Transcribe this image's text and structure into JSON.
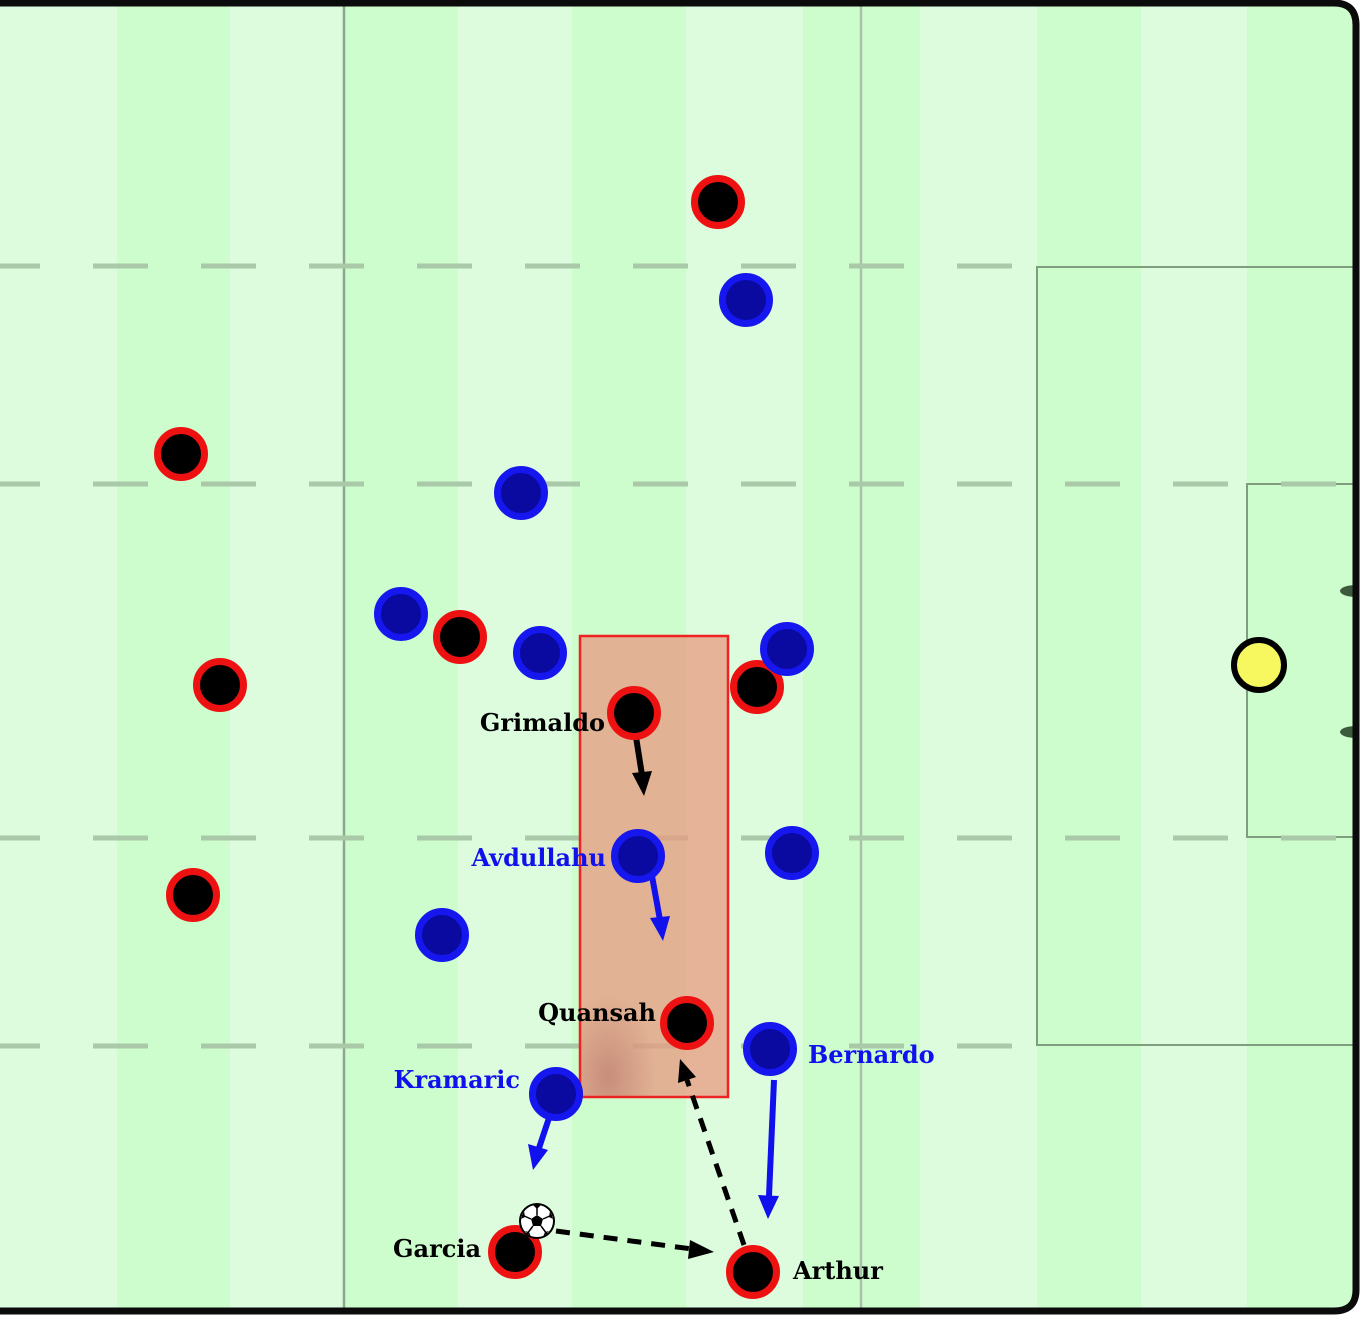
{
  "colors": {
    "stripe_light": "#ddfcdd",
    "stripe_dark": "#cdfccd",
    "line": "#7f9d7f",
    "border": "#0b0b0b",
    "team_red_ring": "#ee1111",
    "team_red_fill": "#000000",
    "team_blue_ring": "#1616ee",
    "team_blue_fill": "#0a0aa0",
    "goalkeeper": "#f7f760",
    "zone_fill": "#e89a80",
    "zone_stroke": "#ee2222",
    "blue_label": "#1111ee",
    "black_label": "#000000"
  },
  "icons": {
    "ball": "soccer-ball-icon",
    "goalkeeper": "goalkeeper-marker"
  },
  "players": {
    "red": [
      {
        "id": "red-1",
        "label": ""
      },
      {
        "id": "red-2",
        "label": ""
      },
      {
        "id": "red-3",
        "label": ""
      },
      {
        "id": "red-4",
        "label": ""
      },
      {
        "id": "red-5",
        "label": ""
      },
      {
        "id": "red-6",
        "label": ""
      },
      {
        "id": "grimaldo",
        "label": "Grimaldo"
      },
      {
        "id": "quansah",
        "label": "Quansah"
      },
      {
        "id": "garcia",
        "label": "Garcia"
      },
      {
        "id": "arthur",
        "label": "Arthur"
      }
    ],
    "blue": [
      {
        "id": "blue-1",
        "label": ""
      },
      {
        "id": "blue-2",
        "label": ""
      },
      {
        "id": "blue-3",
        "label": ""
      },
      {
        "id": "blue-4",
        "label": ""
      },
      {
        "id": "blue-5",
        "label": ""
      },
      {
        "id": "blue-6",
        "label": ""
      },
      {
        "id": "blue-7",
        "label": ""
      },
      {
        "id": "avdullahu",
        "label": "Avdullahu"
      },
      {
        "id": "kramaric",
        "label": "Kramaric"
      },
      {
        "id": "bernardo",
        "label": "Bernardo"
      }
    ]
  },
  "labels": {
    "grimaldo": "Grimaldo",
    "avdullahu": "Avdullahu",
    "quansah": "Quansah",
    "kramaric": "Kramaric",
    "bernardo": "Bernardo",
    "garcia": "Garcia",
    "arthur": "Arthur"
  },
  "movements": {
    "runs": [
      {
        "player": "Grimaldo",
        "team": "red",
        "style": "solid"
      },
      {
        "player": "Avdullahu",
        "team": "blue",
        "style": "solid"
      },
      {
        "player": "Kramaric",
        "team": "blue",
        "style": "solid"
      },
      {
        "player": "Bernardo",
        "team": "blue",
        "style": "solid"
      }
    ],
    "passes": [
      {
        "from": "Garcia",
        "to": "Arthur",
        "style": "dashed"
      },
      {
        "from": "Arthur",
        "to": "Quansah",
        "style": "dashed"
      }
    ]
  }
}
